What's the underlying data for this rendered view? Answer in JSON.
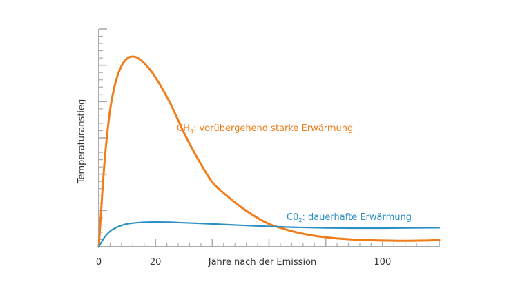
{
  "chart_data": {
    "type": "line",
    "xlabel": "Jahre nach der Emission",
    "ylabel": "Temperaturanstieg",
    "xlim": [
      0,
      120
    ],
    "ylim": [
      0,
      1.0
    ],
    "x_ticks": [
      0,
      20,
      100
    ],
    "colors": {
      "ch4": "#f07d1a",
      "co2": "#2b8fc4",
      "axis": "#aaaaaa"
    },
    "series": [
      {
        "key": "ch4",
        "label_main": "CH",
        "label_sub": "4",
        "label_rest": ": vorübergehend starke Erwärmung",
        "x": [
          0,
          2,
          4,
          6,
          8,
          10,
          12,
          14,
          17,
          20,
          25,
          30,
          35,
          40,
          45,
          50,
          55,
          60,
          65,
          70,
          75,
          80,
          85,
          90,
          95,
          100,
          105,
          110,
          115,
          120
        ],
        "y": [
          0,
          0.44,
          0.72,
          0.87,
          0.95,
          0.99,
          1.0,
          0.99,
          0.95,
          0.89,
          0.76,
          0.6,
          0.46,
          0.34,
          0.27,
          0.21,
          0.16,
          0.12,
          0.095,
          0.075,
          0.06,
          0.05,
          0.043,
          0.038,
          0.035,
          0.033,
          0.032,
          0.032,
          0.033,
          0.035
        ]
      },
      {
        "key": "co2",
        "label_main": "C0",
        "label_sub": "2",
        "label_rest": ": dauerhafte Erwärmung",
        "x": [
          0,
          2,
          4,
          6,
          8,
          10,
          15,
          20,
          25,
          30,
          40,
          50,
          60,
          70,
          80,
          90,
          100,
          110,
          120
        ],
        "y": [
          0,
          0.05,
          0.082,
          0.1,
          0.112,
          0.12,
          0.128,
          0.13,
          0.129,
          0.126,
          0.12,
          0.113,
          0.107,
          0.102,
          0.099,
          0.098,
          0.098,
          0.099,
          0.1
        ]
      }
    ]
  }
}
